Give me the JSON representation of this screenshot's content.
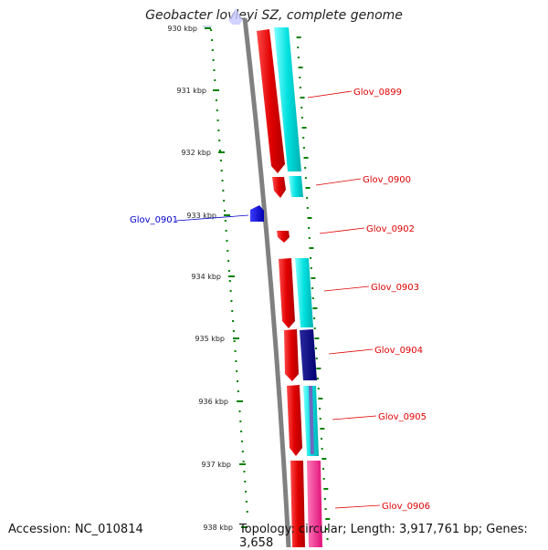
{
  "title": "Geobacter lovleyi SZ, complete genome",
  "accession": "Accession: NC_010814",
  "topology": "Topology: circular; Length: 3,917,761 bp; Genes: 3,658",
  "ticks": [
    "930 kbp",
    "931 kbp",
    "932 kbp",
    "933 kbp",
    "934 kbp",
    "935 kbp",
    "936 kbp",
    "937 kbp",
    "938 kbp"
  ],
  "genes": [
    {
      "name": "Glov_0899",
      "strand": "+",
      "color": "#e00000"
    },
    {
      "name": "Glov_0900",
      "strand": "+",
      "color": "#e00000"
    },
    {
      "name": "Glov_0901",
      "strand": "-",
      "color": "#0000cc"
    },
    {
      "name": "Glov_0902",
      "strand": "+",
      "color": "#e00000"
    },
    {
      "name": "Glov_0903",
      "strand": "+",
      "color": "#e00000"
    },
    {
      "name": "Glov_0904",
      "strand": "+",
      "color": "#e00000"
    },
    {
      "name": "Glov_0905",
      "strand": "+",
      "color": "#e00000"
    },
    {
      "name": "Glov_0906",
      "strand": "+",
      "color": "#e00000"
    }
  ],
  "colors": {
    "forward_gene": "#e00000",
    "reverse_gene": "#0000cc",
    "cog_cyan": "#00d8d8",
    "cog_navy": "#000080",
    "cog_magenta": "#ff1493",
    "gc_skew": "#008000",
    "backbone": "#808080"
  }
}
